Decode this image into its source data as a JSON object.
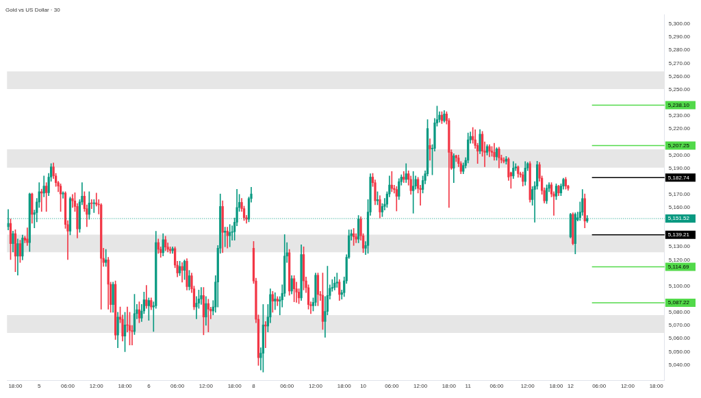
{
  "chart_data": {
    "type": "candlestick",
    "title": "Gold vs US Dollar · 30",
    "categories": [
      null,
      null,
      null,
      "18:00",
      null,
      null,
      null,
      null,
      null,
      null,
      null,
      null,
      null,
      "5",
      null,
      null,
      null,
      null,
      null,
      null,
      null,
      null,
      null,
      null,
      null,
      "06:00",
      null,
      null,
      null,
      null,
      null,
      null,
      null,
      null,
      null,
      null,
      null,
      "12:00",
      null,
      null,
      null,
      null,
      null,
      null,
      null,
      null,
      null,
      null,
      null,
      "18:00",
      null,
      null,
      null,
      null,
      null,
      null,
      null,
      null,
      null,
      "6",
      null,
      null,
      null,
      null,
      null,
      null,
      null,
      null,
      null,
      null,
      null,
      "06:00",
      null,
      null,
      null,
      null,
      null,
      null,
      null,
      null,
      null,
      null,
      null,
      "12:00",
      null,
      null,
      null,
      null,
      null,
      null,
      null,
      null,
      null,
      null,
      null,
      "18:00",
      null,
      null,
      null,
      null,
      null,
      null,
      null,
      "8",
      null,
      null,
      null,
      null,
      null,
      null,
      null,
      null,
      null,
      null,
      null,
      null,
      null,
      "06:00",
      null,
      null,
      null,
      null,
      null,
      null,
      null,
      null,
      null,
      null,
      null,
      "12:00",
      null,
      null,
      null,
      null,
      null,
      null,
      null,
      null,
      null,
      null,
      null,
      "18:00",
      null,
      null,
      null,
      null,
      null,
      null,
      null,
      "10",
      null,
      null,
      null,
      null,
      null,
      null,
      null,
      null,
      null,
      null,
      null,
      "06:00",
      null,
      null,
      null,
      null,
      null,
      null,
      null,
      null,
      null,
      null,
      null,
      "12:00",
      null,
      null,
      null,
      null,
      null,
      null,
      null,
      null,
      null,
      null,
      null,
      "18:00",
      null,
      null,
      null,
      null,
      null,
      null,
      null,
      "11",
      null,
      null,
      null,
      null,
      null,
      null,
      null,
      null,
      null,
      null,
      null,
      "06:00",
      null,
      null,
      null,
      null,
      null,
      null,
      null,
      null,
      null,
      null,
      null,
      null,
      "12:00",
      null,
      null,
      null,
      null,
      null,
      null,
      null,
      null,
      null,
      null,
      null,
      "18:00",
      null,
      null,
      null,
      null,
      null,
      "12",
      null,
      null,
      null,
      null,
      null,
      null,
      null,
      null,
      null,
      null,
      null,
      "06:00",
      null,
      null,
      null,
      null,
      null,
      null,
      null,
      null,
      null,
      null,
      null,
      "12:00",
      null,
      null,
      null,
      null,
      null,
      null,
      null,
      null,
      null,
      null,
      null,
      "18:00",
      null,
      null,
      null
    ],
    "ohlc": [
      [
        5145.3,
        5158.4,
        5142.9,
        5147.9
      ],
      [
        5147.9,
        5151.3,
        5120.3,
        5132.4
      ],
      [
        5132.4,
        5142,
        5126,
        5140
      ],
      [
        5140,
        5143,
        5110.9,
        5122.9
      ],
      [
        5122.9,
        5136,
        5108.3,
        5132.4
      ],
      [
        5132.4,
        5135,
        5118,
        5122.9
      ],
      [
        5122.9,
        5139,
        5120,
        5136.7
      ],
      [
        5136.7,
        5138,
        5133,
        5135
      ],
      [
        5136,
        5144.4,
        5131,
        5133.2
      ],
      [
        5133.2,
        5171,
        5126.4,
        5170.3
      ],
      [
        5170.3,
        5171,
        5148,
        5154.8
      ],
      [
        5154.8,
        5158,
        5144.4,
        5156
      ],
      [
        5156,
        5167,
        5149,
        5164.2
      ],
      [
        5164.2,
        5179,
        5160,
        5172
      ],
      [
        5172,
        5174,
        5157,
        5171
      ],
      [
        5171,
        5184,
        5168,
        5176.3
      ],
      [
        5176.3,
        5179,
        5157,
        5171.2
      ],
      [
        5171.2,
        5186,
        5169,
        5183.2
      ],
      [
        5183.2,
        5193.5,
        5180,
        5191
      ],
      [
        5191,
        5194,
        5182,
        5184.1
      ],
      [
        5184.1,
        5186,
        5176,
        5178.9
      ],
      [
        5178.9,
        5180,
        5172,
        5176.3
      ],
      [
        5176.3,
        5178,
        5157,
        5170.3
      ],
      [
        5170.3,
        5172,
        5167,
        5171
      ],
      [
        5171,
        5172,
        5144,
        5147
      ],
      [
        5147,
        5150,
        5120.3,
        5141.9
      ],
      [
        5141.9,
        5168,
        5139,
        5166.8
      ],
      [
        5166.8,
        5170,
        5160,
        5165
      ],
      [
        5165,
        5171.3,
        5157,
        5160.8
      ],
      [
        5160.8,
        5163,
        5136.7,
        5143.6
      ],
      [
        5143.6,
        5166,
        5141,
        5164.2
      ],
      [
        5164.2,
        5179,
        5162,
        5168.6
      ],
      [
        5168.6,
        5172,
        5157,
        5159.1
      ],
      [
        5159.1,
        5162,
        5145.3,
        5154.8
      ],
      [
        5154.8,
        5172,
        5151,
        5163.4
      ],
      [
        5163.4,
        5166,
        5159,
        5163
      ],
      [
        5163,
        5166,
        5156,
        5163.5
      ],
      [
        5163.5,
        5171,
        5161,
        5162.5
      ],
      [
        5162.5,
        5166,
        5155,
        5162
      ],
      [
        5162,
        5163,
        5082.4,
        5121.2
      ],
      [
        5121.2,
        5128.9,
        5115,
        5118
      ],
      [
        5118,
        5128,
        5115,
        5120
      ],
      [
        5120,
        5122,
        5082.4,
        5101.4
      ],
      [
        5101.4,
        5103,
        5080,
        5085.9
      ],
      [
        5085.9,
        5103,
        5080,
        5101.4
      ],
      [
        5101.4,
        5104,
        5059.2,
        5062.6
      ],
      [
        5062.6,
        5080,
        5053,
        5076.4
      ],
      [
        5076.4,
        5084.1,
        5072,
        5074.7
      ],
      [
        5074.7,
        5078,
        5058,
        5061.8
      ],
      [
        5061.8,
        5080,
        5049.9,
        5070.4
      ],
      [
        5070.4,
        5084.1,
        5065,
        5070
      ],
      [
        5070,
        5080,
        5055,
        5066.1
      ],
      [
        5066.1,
        5070,
        5055,
        5065.3
      ],
      [
        5065.3,
        5093.8,
        5063,
        5079
      ],
      [
        5079,
        5086,
        5075,
        5082
      ],
      [
        5082,
        5088,
        5072,
        5075.5
      ],
      [
        5075.5,
        5086,
        5073,
        5081
      ],
      [
        5081,
        5095.4,
        5079,
        5089.6
      ],
      [
        5089.6,
        5100.5,
        5083,
        5085
      ],
      [
        5085,
        5091,
        5073.8,
        5089
      ],
      [
        5089,
        5091,
        5082,
        5084.1
      ],
      [
        5084.1,
        5088,
        5065.4,
        5085
      ],
      [
        5085,
        5141.9,
        5083,
        5133.2
      ],
      [
        5133.2,
        5136,
        5125,
        5128.1
      ],
      [
        5128.1,
        5130,
        5122,
        5125.5
      ],
      [
        5125.5,
        5140,
        5123,
        5135.5
      ],
      [
        5135.5,
        5138,
        5127,
        5129.8
      ],
      [
        5129.8,
        5133,
        5126,
        5128.1
      ],
      [
        5128.1,
        5130,
        5125,
        5127
      ],
      [
        5127,
        5130,
        5125,
        5128.6
      ],
      [
        5128.6,
        5130,
        5114,
        5116
      ],
      [
        5116,
        5119,
        5107,
        5110
      ],
      [
        5110,
        5119,
        5108,
        5115
      ],
      [
        5115,
        5118,
        5103,
        5112
      ],
      [
        5112,
        5120,
        5105,
        5119
      ],
      [
        5119,
        5121,
        5097,
        5099.6
      ],
      [
        5099.6,
        5112,
        5097,
        5107.9
      ],
      [
        5107.9,
        5110,
        5095,
        5097.9
      ],
      [
        5097.9,
        5100,
        5082,
        5084.1
      ],
      [
        5084.1,
        5092,
        5075,
        5087
      ],
      [
        5087,
        5097,
        5083,
        5090.2
      ],
      [
        5090.2,
        5099,
        5086,
        5092.8
      ],
      [
        5092.8,
        5099,
        5062.8,
        5076.4
      ],
      [
        5076.4,
        5092,
        5070,
        5086.7
      ],
      [
        5086.7,
        5090,
        5065,
        5082.4
      ],
      [
        5082.4,
        5084,
        5075,
        5081
      ],
      [
        5081,
        5089,
        5078,
        5084.1
      ],
      [
        5084.1,
        5108,
        5080,
        5103.1
      ],
      [
        5103.1,
        5131,
        5084,
        5128.9
      ],
      [
        5128.9,
        5170.3,
        5125,
        5160.8
      ],
      [
        5160.8,
        5165.1,
        5125.5,
        5141
      ],
      [
        5141,
        5145,
        5130,
        5142
      ],
      [
        5142,
        5145,
        5129,
        5138.4
      ],
      [
        5138.4,
        5147,
        5130,
        5141
      ],
      [
        5141,
        5146,
        5135,
        5141.5
      ],
      [
        5141.5,
        5152,
        5135,
        5148.7
      ],
      [
        5148.7,
        5173.8,
        5146,
        5160
      ],
      [
        5160,
        5170,
        5157,
        5163.9
      ],
      [
        5163.9,
        5167,
        5157,
        5159.1
      ],
      [
        5159.1,
        5161,
        5150,
        5152.2
      ],
      [
        5152.2,
        5154,
        5148,
        5151
      ],
      [
        5151,
        5168,
        5149,
        5166.8
      ],
      [
        5166.8,
        5175.4,
        5164,
        5170.3
      ],
      [
        5128.9,
        5134.1,
        5102,
        5103.9
      ],
      [
        5103.9,
        5106,
        5072,
        5074.7
      ],
      [
        5074.7,
        5078,
        5039.5,
        5045.4
      ],
      [
        5045.4,
        5053,
        5035.9,
        5048.8
      ],
      [
        5048.8,
        5086,
        5034.4,
        5070.4
      ],
      [
        5070.4,
        5073,
        5053,
        5069.5
      ],
      [
        5069.5,
        5086,
        5065,
        5076.4
      ],
      [
        5076.4,
        5097.9,
        5072,
        5093.6
      ],
      [
        5093.6,
        5096,
        5080,
        5088.5
      ],
      [
        5088.5,
        5095,
        5082,
        5090.2
      ],
      [
        5090.2,
        5092,
        5085,
        5088.5
      ],
      [
        5088.5,
        5092,
        5078,
        5089.5
      ],
      [
        5089.5,
        5101,
        5084,
        5094.5
      ],
      [
        5094.5,
        5139.3,
        5092,
        5122.9
      ],
      [
        5122.9,
        5133.2,
        5118,
        5125.5
      ],
      [
        5125.5,
        5128,
        5093,
        5096.2
      ],
      [
        5096.2,
        5108,
        5094,
        5105.7
      ],
      [
        5105.7,
        5108,
        5088,
        5097.9
      ],
      [
        5097.9,
        5103,
        5087.6,
        5095.4
      ],
      [
        5095.4,
        5098,
        5086.6,
        5091
      ],
      [
        5091,
        5131.5,
        5089,
        5124.1
      ],
      [
        5124.1,
        5130,
        5097,
        5104
      ],
      [
        5104,
        5107,
        5095,
        5098.8
      ],
      [
        5098.8,
        5101,
        5082.4,
        5085.9
      ],
      [
        5085.9,
        5088,
        5079,
        5085
      ],
      [
        5085,
        5091,
        5081,
        5087.6
      ],
      [
        5087.6,
        5110,
        5085,
        5108.3
      ],
      [
        5108.3,
        5110,
        5085,
        5093.6
      ],
      [
        5093.6,
        5096,
        5089,
        5093
      ],
      [
        5093,
        5110,
        5066.9,
        5073
      ],
      [
        5073,
        5092,
        5060.9,
        5080.7
      ],
      [
        5080.7,
        5115.2,
        5078,
        5092.8
      ],
      [
        5092.8,
        5101,
        5090,
        5098.3
      ],
      [
        5098.3,
        5105,
        5096,
        5099
      ],
      [
        5099,
        5107,
        5097,
        5102.3
      ],
      [
        5102.3,
        5110,
        5099,
        5103.1
      ],
      [
        5103.1,
        5105,
        5089,
        5093.6
      ],
      [
        5093.6,
        5097,
        5090,
        5095
      ],
      [
        5095,
        5107,
        5092,
        5104
      ],
      [
        5104,
        5124,
        5102,
        5122
      ],
      [
        5122,
        5142.9,
        5121,
        5138.4
      ],
      [
        5138.4,
        5143,
        5135,
        5140
      ],
      [
        5140,
        5144,
        5131,
        5137.6
      ],
      [
        5137.6,
        5140,
        5133,
        5135.8
      ],
      [
        5135.8,
        5153.9,
        5133,
        5151.3
      ],
      [
        5151.3,
        5153,
        5135,
        5138.4
      ],
      [
        5138.4,
        5140,
        5125.5,
        5128.9
      ],
      [
        5128.9,
        5134,
        5124,
        5131
      ],
      [
        5131,
        5166,
        5125,
        5156.5
      ],
      [
        5156.5,
        5185.8,
        5154,
        5183.2
      ],
      [
        5183.2,
        5186,
        5176,
        5178.9
      ],
      [
        5178.9,
        5181,
        5162,
        5165.1
      ],
      [
        5165.1,
        5172,
        5162,
        5166
      ],
      [
        5166,
        5169,
        5152,
        5156.5
      ],
      [
        5156.5,
        5163,
        5153,
        5160.8
      ],
      [
        5160.8,
        5167,
        5158,
        5162.5
      ],
      [
        5162.5,
        5172,
        5160,
        5170.3
      ],
      [
        5170.3,
        5184,
        5168,
        5177.1
      ],
      [
        5177.1,
        5187.5,
        5172,
        5174.5
      ],
      [
        5174.5,
        5177,
        5171,
        5173.7
      ],
      [
        5173.7,
        5176,
        5157.3,
        5168.5
      ],
      [
        5168.5,
        5182,
        5166,
        5179.7
      ],
      [
        5179.7,
        5185,
        5177,
        5183.2
      ],
      [
        5183.2,
        5187.5,
        5179,
        5181.4
      ],
      [
        5181.4,
        5193.5,
        5179,
        5185.7
      ],
      [
        5185.7,
        5188,
        5177,
        5181.4
      ],
      [
        5181.4,
        5184,
        5170,
        5172.8
      ],
      [
        5172.8,
        5187.5,
        5155.6,
        5176.3
      ],
      [
        5176.3,
        5184,
        5174,
        5181.4
      ],
      [
        5181.4,
        5183,
        5171,
        5174.5
      ],
      [
        5174.5,
        5177,
        5161.6,
        5173.7
      ],
      [
        5173.7,
        5184,
        5171,
        5180.6
      ],
      [
        5180.6,
        5188,
        5178,
        5185.7
      ],
      [
        5185.7,
        5227.1,
        5184,
        5220.2
      ],
      [
        5207.3,
        5212.4,
        5196,
        5204.7
      ],
      [
        5204.7,
        5208,
        5184.9,
        5205
      ],
      [
        5205,
        5228,
        5203,
        5224.5
      ],
      [
        5224.5,
        5237.4,
        5222,
        5227.1
      ],
      [
        5227.1,
        5233,
        5225,
        5230.5
      ],
      [
        5230.5,
        5233,
        5224,
        5226.2
      ],
      [
        5226.2,
        5234,
        5225,
        5231.4
      ],
      [
        5231.4,
        5233,
        5223.6,
        5226.2
      ],
      [
        5226.2,
        5228,
        5159.9,
        5202.1
      ],
      [
        5202.1,
        5204,
        5189,
        5190
      ],
      [
        5190,
        5201,
        5178.9,
        5199.5
      ],
      [
        5199.5,
        5200,
        5195,
        5197.8
      ],
      [
        5197.8,
        5200,
        5191,
        5193.5
      ],
      [
        5193.5,
        5195,
        5185.7,
        5187.5
      ],
      [
        5187.5,
        5194,
        5185.7,
        5192
      ],
      [
        5192,
        5198,
        5190,
        5196
      ],
      [
        5196,
        5216.8,
        5194,
        5211.6
      ],
      [
        5211.6,
        5217.6,
        5209,
        5214.2
      ],
      [
        5214.2,
        5221,
        5209,
        5211.6
      ],
      [
        5211.6,
        5219.3,
        5205,
        5207.3
      ],
      [
        5207.3,
        5209,
        5193.5,
        5203
      ],
      [
        5203,
        5219.4,
        5201,
        5215.9
      ],
      [
        5215.9,
        5218,
        5199,
        5203
      ],
      [
        5203,
        5210,
        5191,
        5202.1
      ],
      [
        5202.1,
        5208,
        5200,
        5206.5
      ],
      [
        5206.5,
        5208,
        5198.7,
        5203
      ],
      [
        5203,
        5206.5,
        5199,
        5202.1
      ],
      [
        5202.1,
        5209,
        5196,
        5198.7
      ],
      [
        5198.7,
        5205.6,
        5196,
        5204.7
      ],
      [
        5204.7,
        5206,
        5190.1,
        5197.8
      ],
      [
        5197.8,
        5200,
        5194,
        5196.1
      ],
      [
        5196.1,
        5198,
        5194,
        5195.3
      ],
      [
        5195.3,
        5199,
        5193,
        5197
      ],
      [
        5197,
        5198,
        5180.6,
        5183.2
      ],
      [
        5186.6,
        5187,
        5174.6,
        5184
      ],
      [
        5184,
        5195,
        5182,
        5190.1
      ],
      [
        5190.1,
        5193.5,
        5188,
        5191
      ],
      [
        5191,
        5191.8,
        5183,
        5185.8
      ],
      [
        5185.8,
        5187,
        5183,
        5185
      ],
      [
        5185,
        5187,
        5176.3,
        5179.8
      ],
      [
        5179.8,
        5195,
        5177,
        5190.1
      ],
      [
        5190.1,
        5194.4,
        5188,
        5193.5
      ],
      [
        5193.5,
        5195,
        5164,
        5166
      ],
      [
        5166,
        5176,
        5161.7,
        5173.7
      ],
      [
        5173.7,
        5179.8,
        5148.7,
        5176.3
      ],
      [
        5176.3,
        5195.3,
        5174,
        5192.7
      ],
      [
        5192.7,
        5194.4,
        5180,
        5182.3
      ],
      [
        5182.3,
        5184,
        5170,
        5172.9
      ],
      [
        5172.9,
        5175,
        5163.4,
        5165.1
      ],
      [
        5165.1,
        5177.2,
        5163,
        5174.6
      ],
      [
        5174.6,
        5179,
        5172,
        5177.2
      ],
      [
        5177.2,
        5179,
        5168,
        5170.3
      ],
      [
        5170.3,
        5172,
        5153.9,
        5168.6
      ],
      [
        5168.6,
        5178,
        5166,
        5176.3
      ],
      [
        5176.3,
        5177,
        5169,
        5171.1
      ],
      [
        5171.1,
        5178,
        5169,
        5176.3
      ],
      [
        5176.3,
        5182.3,
        5174,
        5181.5
      ],
      [
        5181.5,
        5183,
        5174,
        5176.3
      ],
      [
        5176.3,
        5177,
        5173,
        5174.6
      ],
      [
        5137.5,
        5155.6,
        5136.7,
        5154.8
      ],
      [
        5154.8,
        5156,
        5131.5,
        5132.4
      ],
      [
        5132.4,
        5156,
        5124.6,
        5154.8
      ],
      [
        5150.5,
        5156.5,
        5149.6,
        5152.2
      ],
      [
        5152.2,
        5164.2,
        5150,
        5156.5
      ],
      [
        5156.5,
        5173.7,
        5154,
        5166.8
      ],
      [
        5166.8,
        5170.3,
        5144.4,
        5149.6
      ],
      [
        5149.6,
        5153.9,
        5148.5,
        5151.5
      ],
      null,
      null,
      null,
      null,
      null,
      null,
      null,
      null,
      null,
      null,
      null,
      null,
      null,
      null,
      null,
      null,
      null,
      null,
      null,
      null,
      null,
      null,
      null,
      null,
      null,
      null,
      null,
      null,
      null,
      null,
      null,
      null
    ],
    "ylim": [
      5028,
      5307
    ],
    "yticks": [
      {
        "value": 5040,
        "label": "5,040.00"
      },
      {
        "value": 5050,
        "label": "5,050.00"
      },
      {
        "value": 5060,
        "label": "5,060.00"
      },
      {
        "value": 5070,
        "label": "5,070.00"
      },
      {
        "value": 5080,
        "label": "5,080.00"
      },
      {
        "value": 5100,
        "label": "5,100.00"
      },
      {
        "value": 5120,
        "label": "5,120.00"
      },
      {
        "value": 5130,
        "label": "5,130.00"
      },
      {
        "value": 5160,
        "label": "5,160.00"
      },
      {
        "value": 5170,
        "label": "5,170.00"
      },
      {
        "value": 5190,
        "label": "5,190.00"
      },
      {
        "value": 5200,
        "label": "5,200.00"
      },
      {
        "value": 5220,
        "label": "5,220.00"
      },
      {
        "value": 5230,
        "label": "5,230.00"
      },
      {
        "value": 5250,
        "label": "5,250.00"
      },
      {
        "value": 5260,
        "label": "5,260.00"
      },
      {
        "value": 5270,
        "label": "5,270.00"
      },
      {
        "value": 5280,
        "label": "5,280.00"
      },
      {
        "value": 5290,
        "label": "5,290.00"
      },
      {
        "value": 5300,
        "label": "5,300.00"
      }
    ],
    "bands": [
      {
        "axis": "y",
        "from": 5250.4,
        "to": 5263.8,
        "color": "#e6e6e6"
      },
      {
        "axis": "y",
        "from": 5190.4,
        "to": 5204.4,
        "color": "#e6e6e6"
      },
      {
        "axis": "y",
        "from": 5125.8,
        "to": 5139.3,
        "color": "#e6e6e6"
      },
      {
        "axis": "y",
        "from": 5064.3,
        "to": 5077.8,
        "color": "#e6e6e6"
      }
    ],
    "ref_lines": [
      {
        "axis": "y",
        "value": 5238.1,
        "label": "5,238.10",
        "color": "#52d94a",
        "line_style": "solid"
      },
      {
        "axis": "y",
        "value": 5207.25,
        "label": "5,207.25",
        "color": "#52d94a",
        "line_style": "solid"
      },
      {
        "axis": "y",
        "value": 5182.74,
        "label": "5,182.74",
        "color": "#000000",
        "line_style": "solid"
      },
      {
        "axis": "y",
        "value": 5151.52,
        "label": "5,151.52",
        "color": "#089981",
        "line_style": "dotted"
      },
      {
        "axis": "y",
        "value": 5139.21,
        "label": "5,139.21",
        "color": "#000000",
        "line_style": "solid"
      },
      {
        "axis": "y",
        "value": 5114.69,
        "label": "5,114.69",
        "color": "#52d94a",
        "line_style": "solid"
      },
      {
        "axis": "y",
        "value": 5087.22,
        "label": "5,087.22",
        "color": "#52d94a",
        "line_style": "solid"
      }
    ],
    "grid": false,
    "legend": false
  }
}
